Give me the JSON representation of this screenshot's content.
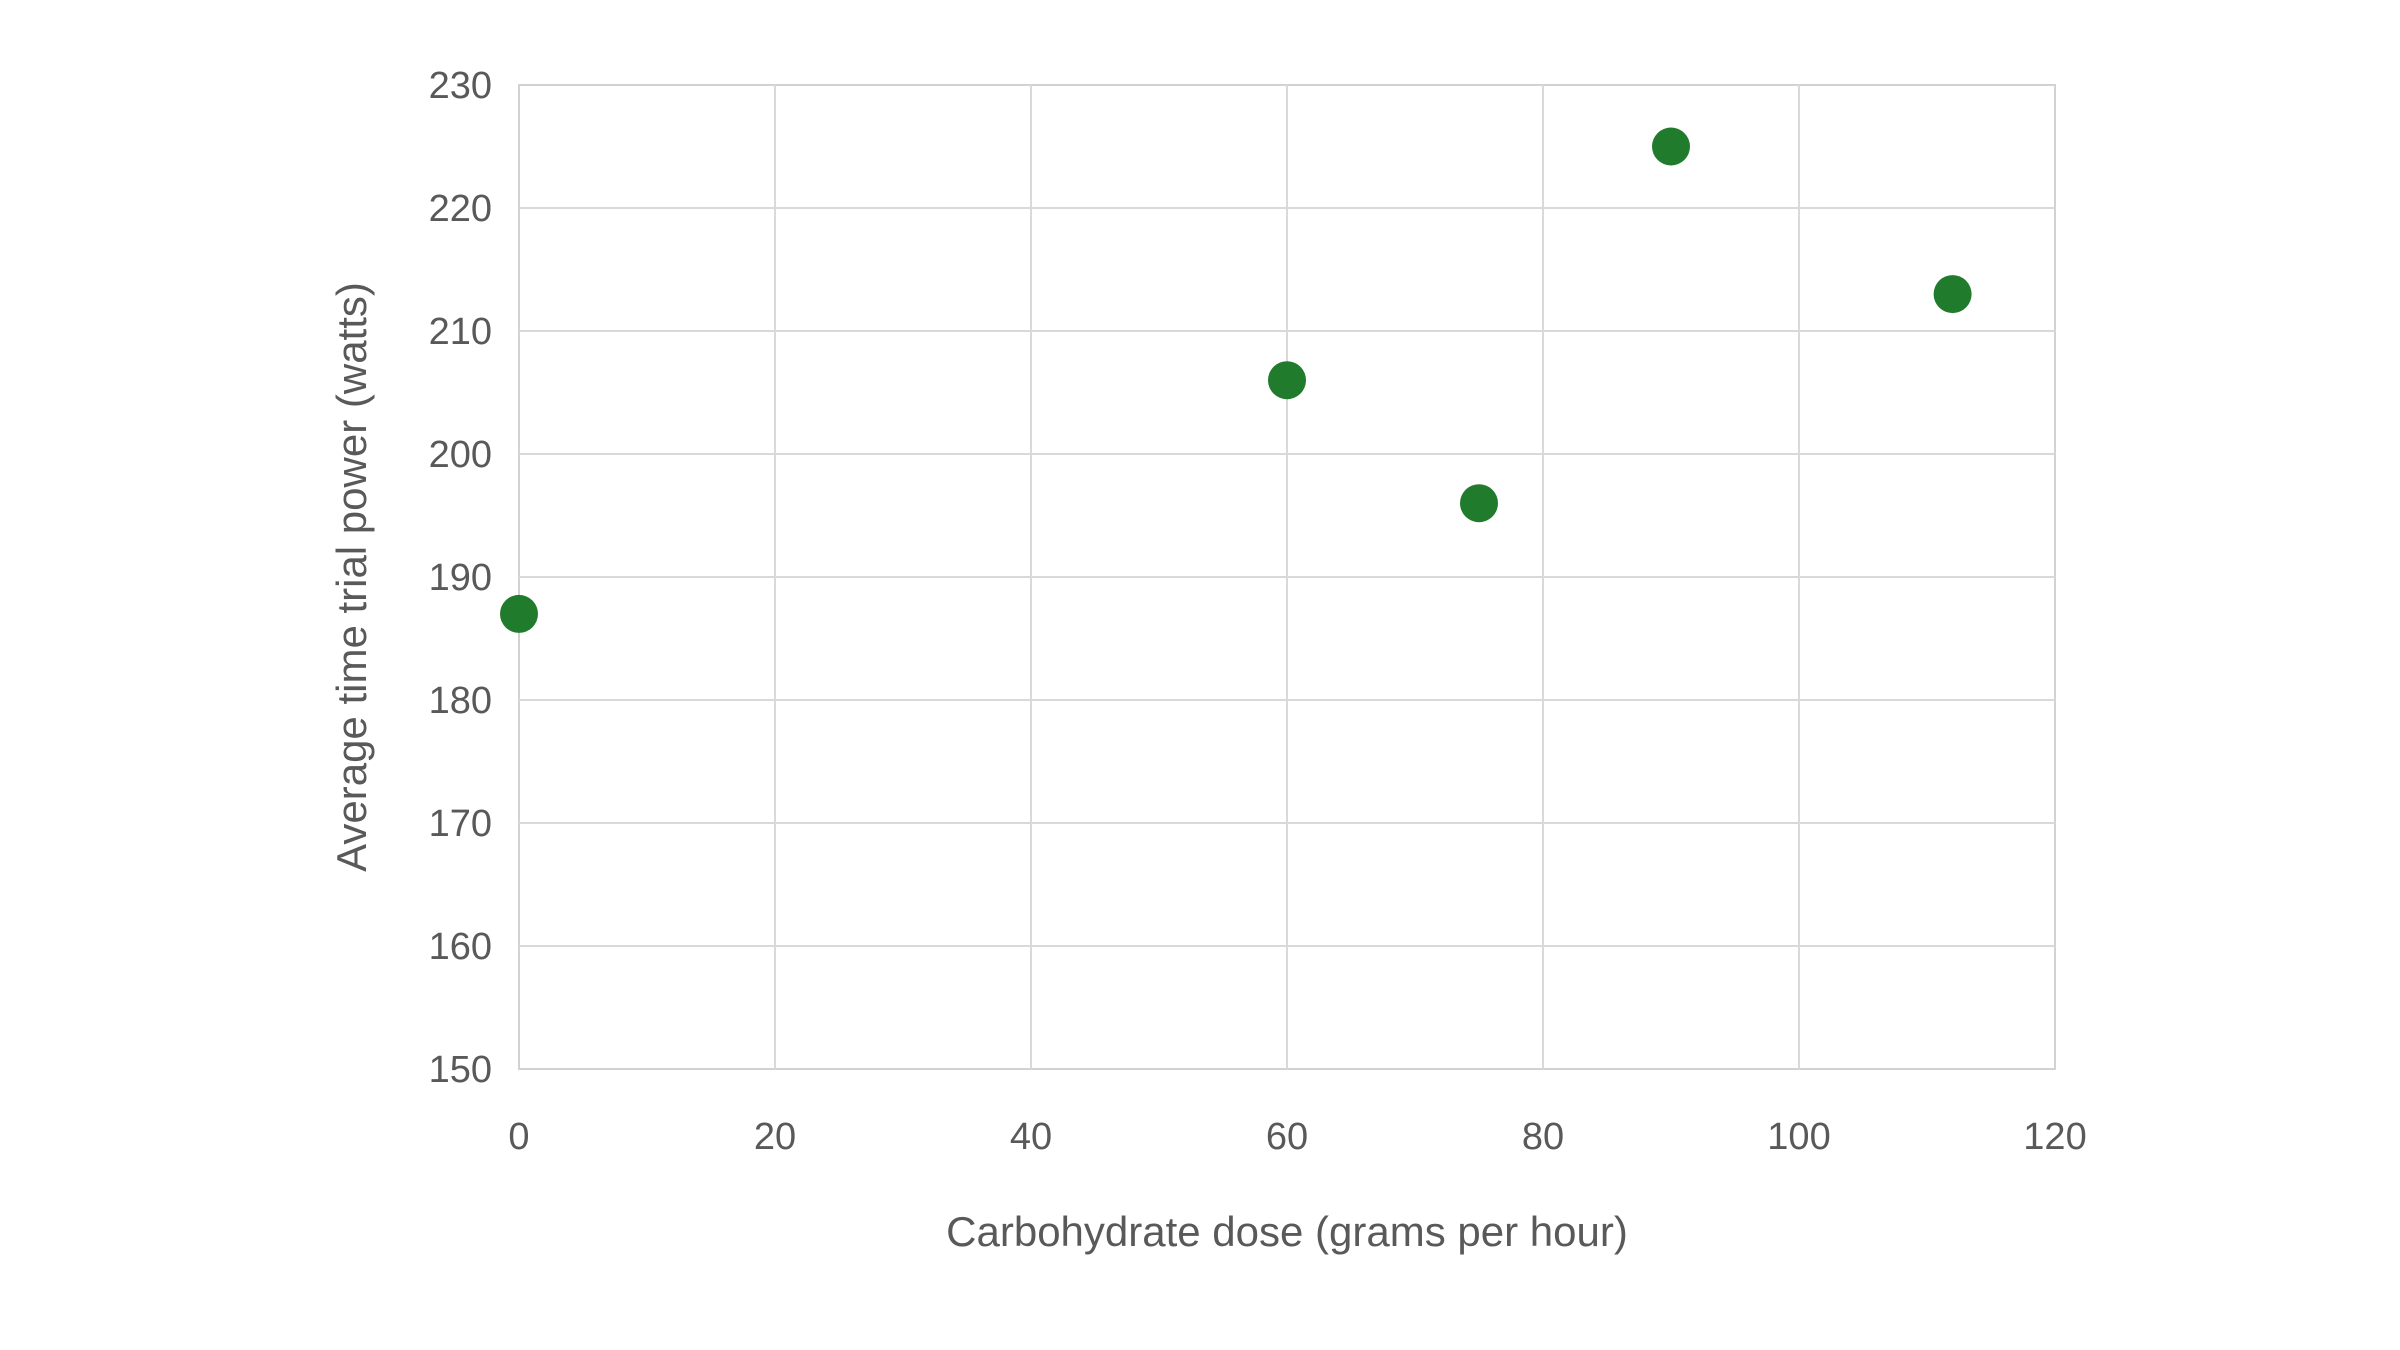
{
  "page": {
    "background_color": "#ffffff"
  },
  "chart_data": {
    "type": "scatter",
    "title": "",
    "xlabel": "Carbohydrate dose (grams per hour)",
    "ylabel": "Average time trial power (watts)",
    "x": [
      0,
      60,
      75,
      90,
      112
    ],
    "y": [
      187,
      206,
      196,
      225,
      213
    ],
    "xlim": [
      0,
      120
    ],
    "ylim": [
      150,
      230
    ],
    "xticks": [
      0,
      20,
      40,
      60,
      80,
      100,
      120
    ],
    "yticks": [
      150,
      160,
      170,
      180,
      190,
      200,
      210,
      220,
      230
    ],
    "grid": true,
    "legend_position": "none",
    "point_color": "#217B2C",
    "point_radius": 19,
    "gridline_color": "#D9D9D9",
    "plot_border_color": "#D2D2D2",
    "axis_text_color": "#595959",
    "tick_font_size": 38,
    "axis_title_font_size": 42
  }
}
